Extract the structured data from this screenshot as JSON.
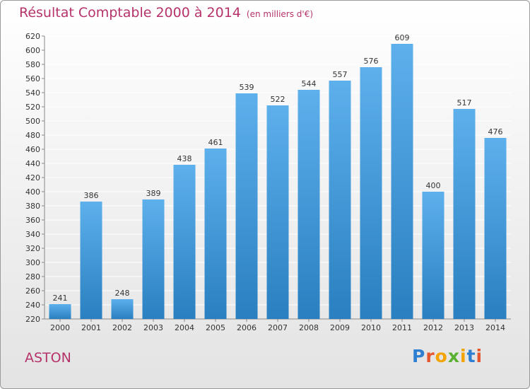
{
  "title": "Résultat Comptable 2000 à 2014",
  "subtitle": "(en milliers d'€)",
  "commune": "ASTON",
  "brand": {
    "letters": [
      "P",
      "r",
      "o",
      "x",
      "i",
      "t",
      "i"
    ],
    "colors": [
      "#2e7fd1",
      "#e4572e",
      "#f4a300",
      "#5ab031",
      "#f4a300",
      "#2e7fd1",
      "#e4572e"
    ]
  },
  "colors": {
    "bar": "#4aa3e4",
    "title": "#b5336a",
    "grid": "#ffffff"
  },
  "chart_data": {
    "type": "bar",
    "title": "Résultat Comptable 2000 à 2014",
    "xlabel": "",
    "ylabel": "",
    "categories": [
      "2000",
      "2001",
      "2002",
      "2003",
      "2004",
      "2005",
      "2006",
      "2007",
      "2008",
      "2009",
      "2010",
      "2011",
      "2012",
      "2013",
      "2014"
    ],
    "values": [
      241,
      386,
      248,
      389,
      438,
      461,
      539,
      522,
      544,
      557,
      576,
      609,
      400,
      517,
      476
    ],
    "ylim": [
      220,
      620
    ],
    "yticks": [
      220,
      240,
      260,
      280,
      300,
      320,
      340,
      360,
      380,
      400,
      420,
      440,
      460,
      480,
      500,
      520,
      540,
      560,
      580,
      600,
      620
    ],
    "grid": true,
    "data_labels": true
  }
}
